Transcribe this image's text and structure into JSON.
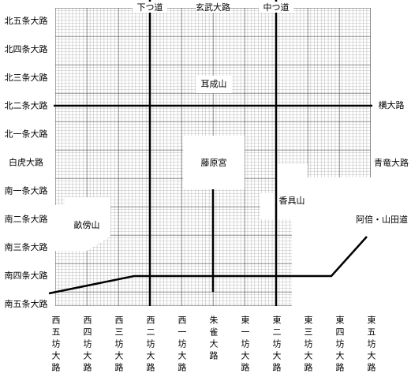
{
  "top_roads": [
    "下つ道",
    "玄武大路",
    "中つ道"
  ],
  "left_roads": [
    "北五条大路",
    "北四条大路",
    "北三条大路",
    "北二条大路",
    "北一条大路",
    "白虎大路",
    "南一条大路",
    "南二条大路",
    "南三条大路",
    "南四条大路",
    "南五条大路"
  ],
  "right_roads": [
    "横大路",
    "青竜大路"
  ],
  "bottom_roads": [
    "西五坊大路",
    "西四坊大路",
    "西三坊大路",
    "西二坊大路",
    "西一坊大路",
    "朱雀大路",
    "東一坊大路",
    "東二坊大路",
    "東三坊大路",
    "東四坊大路",
    "東五坊大路"
  ],
  "places": [
    "耳成山",
    "藤原宮",
    "香具山",
    "畝傍山",
    "阿倍・山田道"
  ]
}
